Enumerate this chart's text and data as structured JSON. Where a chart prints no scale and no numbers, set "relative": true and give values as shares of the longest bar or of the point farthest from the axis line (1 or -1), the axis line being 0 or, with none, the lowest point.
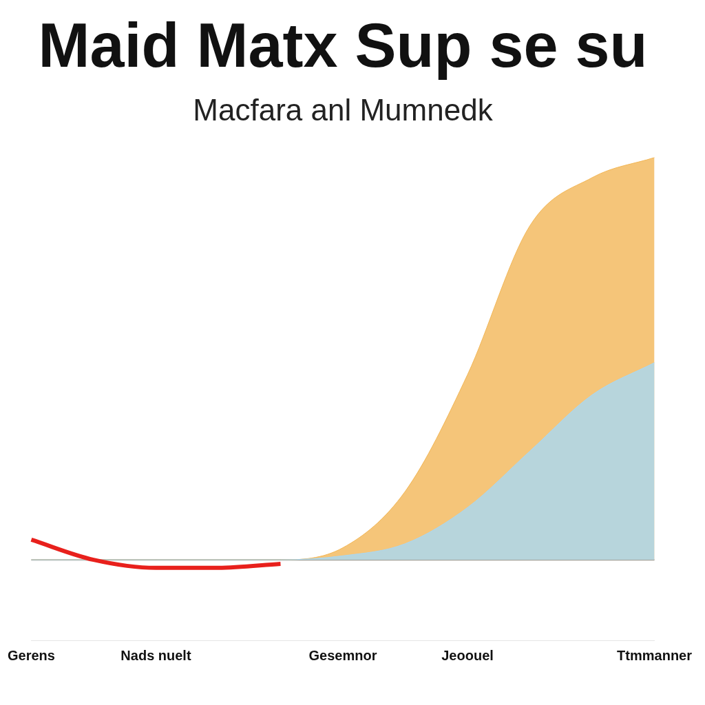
{
  "chart_data": {
    "type": "area",
    "title": "Maid Matx Sup se su",
    "subtitle": "Macfara anl Mumnedk",
    "relative": true,
    "grid": false,
    "legend": false,
    "categories": [
      "Gerens",
      null,
      "Nads nuelt",
      null,
      null,
      "Gesemnor",
      null,
      "Jeoouel",
      null,
      null,
      "Ttmmanner"
    ],
    "series": [
      {
        "color": "#f2b757",
        "values": [
          0,
          0,
          0,
          0,
          0,
          0.03,
          0.17,
          0.46,
          0.83,
          0.95,
          1
        ]
      },
      {
        "color": "#a8d8f5",
        "values": [
          0,
          0,
          0,
          0,
          0,
          0.01,
          0.04,
          0.13,
          0.27,
          0.41,
          0.49
        ]
      },
      {
        "type": "line",
        "color": "#e8201c",
        "values": [
          0.05,
          0,
          -0.02,
          -0.02,
          -0.01,
          null,
          null,
          null,
          null,
          null,
          null
        ]
      }
    ]
  }
}
